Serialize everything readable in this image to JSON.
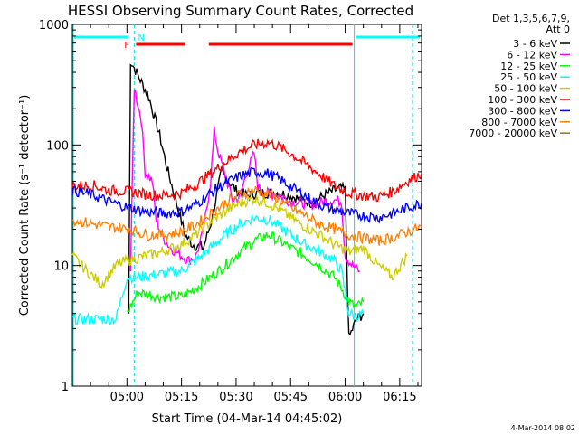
{
  "chart_data": {
    "type": "line",
    "title": "HESSI Observing Summary Count Rates, Corrected",
    "xlabel": "Start Time (04-Mar-14 04:45:02)",
    "ylabel": "Corrected Count Rate (s⁻¹ detector⁻¹)",
    "y_scale": "log",
    "ylim": [
      1,
      1000
    ],
    "xlim_minutes": [
      0,
      96
    ],
    "x_tick_labels": [
      "05:00",
      "05:15",
      "05:30",
      "05:45",
      "06:00",
      "06:15"
    ],
    "y_tick_labels": [
      "1",
      "10",
      "100",
      "1000"
    ],
    "legend_header": [
      "Det 1,3,5,6,7,9,",
      "Att 0"
    ],
    "series": [
      {
        "name": "3 - 6 keV",
        "color": "#000000",
        "points": [
          [
            15.5,
            4
          ],
          [
            16,
            500
          ],
          [
            18,
            380
          ],
          [
            21,
            250
          ],
          [
            24,
            120
          ],
          [
            26,
            65
          ],
          [
            29,
            30
          ],
          [
            31,
            18
          ],
          [
            33,
            15
          ],
          [
            36,
            14
          ],
          [
            38,
            22
          ],
          [
            41,
            60
          ],
          [
            43,
            50
          ],
          [
            45,
            42
          ],
          [
            48,
            38
          ],
          [
            51,
            40
          ],
          [
            54,
            40
          ],
          [
            57,
            40
          ],
          [
            60,
            38
          ],
          [
            63,
            35
          ],
          [
            66,
            33
          ],
          [
            69,
            38
          ],
          [
            72,
            42
          ],
          [
            74,
            44
          ],
          [
            75,
            42
          ],
          [
            76,
            2.5
          ],
          [
            78,
            3.5
          ],
          [
            80,
            4
          ]
        ]
      },
      {
        "name": "6 - 12 keV",
        "color": "#ff00ff",
        "points": [
          [
            16,
            9
          ],
          [
            17,
            300
          ],
          [
            19,
            160
          ],
          [
            20,
            60
          ],
          [
            22,
            50
          ],
          [
            23,
            24
          ],
          [
            25,
            17
          ],
          [
            27,
            14
          ],
          [
            30,
            12
          ],
          [
            32,
            11
          ],
          [
            34,
            12
          ],
          [
            36,
            19
          ],
          [
            38,
            50
          ],
          [
            39,
            130
          ],
          [
            40,
            90
          ],
          [
            42,
            56
          ],
          [
            44,
            35
          ],
          [
            46,
            37
          ],
          [
            48,
            60
          ],
          [
            50,
            85
          ],
          [
            51,
            45
          ],
          [
            53,
            40
          ],
          [
            57,
            38
          ],
          [
            60,
            34
          ],
          [
            63,
            33
          ],
          [
            66,
            32
          ],
          [
            69,
            34
          ],
          [
            72,
            35
          ],
          [
            74,
            34
          ],
          [
            75,
            12
          ],
          [
            77,
            10
          ],
          [
            79,
            9
          ]
        ]
      },
      {
        "name": "12 - 25 keV",
        "color": "#00ff00",
        "points": [
          [
            15,
            4
          ],
          [
            18,
            6
          ],
          [
            24,
            5.5
          ],
          [
            30,
            5.5
          ],
          [
            34,
            6.5
          ],
          [
            38,
            8
          ],
          [
            42,
            10
          ],
          [
            46,
            13
          ],
          [
            50,
            16
          ],
          [
            54,
            18
          ],
          [
            57,
            16
          ],
          [
            60,
            14
          ],
          [
            64,
            12
          ],
          [
            68,
            10
          ],
          [
            72,
            8
          ],
          [
            74,
            6.5
          ],
          [
            76,
            5
          ],
          [
            78,
            4.5
          ],
          [
            80,
            5
          ]
        ]
      },
      {
        "name": "25 - 50 keV",
        "color": "#00ffff",
        "points": [
          [
            0,
            3.6
          ],
          [
            12,
            3.6
          ],
          [
            15,
            8
          ],
          [
            18,
            8
          ],
          [
            24,
            8.5
          ],
          [
            30,
            9
          ],
          [
            34,
            11
          ],
          [
            38,
            14
          ],
          [
            42,
            18
          ],
          [
            46,
            22
          ],
          [
            50,
            25
          ],
          [
            54,
            24
          ],
          [
            57,
            21
          ],
          [
            60,
            18
          ],
          [
            64,
            15
          ],
          [
            68,
            13
          ],
          [
            72,
            11
          ],
          [
            74,
            9
          ],
          [
            76,
            4
          ],
          [
            78,
            3.8
          ],
          [
            80,
            4
          ]
        ]
      },
      {
        "name": "50 - 100 keV",
        "color": "#cccc00",
        "points": [
          [
            0,
            12
          ],
          [
            4,
            9
          ],
          [
            8,
            7
          ],
          [
            12,
            10
          ],
          [
            15,
            11
          ],
          [
            20,
            12
          ],
          [
            25,
            13
          ],
          [
            30,
            15
          ],
          [
            34,
            18
          ],
          [
            38,
            23
          ],
          [
            42,
            28
          ],
          [
            46,
            33
          ],
          [
            50,
            36
          ],
          [
            54,
            33
          ],
          [
            57,
            29
          ],
          [
            60,
            25
          ],
          [
            64,
            21
          ],
          [
            68,
            18
          ],
          [
            72,
            15
          ],
          [
            76,
            13
          ],
          [
            80,
            14
          ],
          [
            84,
            10
          ],
          [
            88,
            8
          ],
          [
            92,
            12
          ]
        ]
      },
      {
        "name": "100 - 300 keV",
        "color": "#ff0000",
        "points": [
          [
            0,
            46
          ],
          [
            6,
            46
          ],
          [
            10,
            42
          ],
          [
            16,
            41
          ],
          [
            20,
            39
          ],
          [
            25,
            38
          ],
          [
            30,
            40
          ],
          [
            34,
            47
          ],
          [
            38,
            58
          ],
          [
            42,
            72
          ],
          [
            46,
            88
          ],
          [
            50,
            100
          ],
          [
            54,
            105
          ],
          [
            57,
            96
          ],
          [
            60,
            85
          ],
          [
            64,
            70
          ],
          [
            68,
            57
          ],
          [
            72,
            46
          ],
          [
            76,
            40
          ],
          [
            80,
            38
          ],
          [
            84,
            37
          ],
          [
            88,
            41
          ],
          [
            92,
            50
          ],
          [
            96,
            58
          ]
        ]
      },
      {
        "name": "300 - 800 keV",
        "color": "#0000ff",
        "points": [
          [
            0,
            42
          ],
          [
            6,
            38
          ],
          [
            10,
            34
          ],
          [
            16,
            30
          ],
          [
            20,
            28
          ],
          [
            25,
            27
          ],
          [
            30,
            28
          ],
          [
            34,
            32
          ],
          [
            38,
            40
          ],
          [
            42,
            48
          ],
          [
            46,
            55
          ],
          [
            50,
            60
          ],
          [
            54,
            58
          ],
          [
            57,
            52
          ],
          [
            60,
            45
          ],
          [
            64,
            38
          ],
          [
            68,
            32
          ],
          [
            72,
            29
          ],
          [
            76,
            27
          ],
          [
            80,
            26
          ],
          [
            84,
            25
          ],
          [
            88,
            27
          ],
          [
            92,
            30
          ],
          [
            96,
            33
          ]
        ]
      },
      {
        "name": "800 - 7000 keV",
        "color": "#ff8000",
        "points": [
          [
            0,
            24
          ],
          [
            6,
            22
          ],
          [
            10,
            21
          ],
          [
            16,
            20
          ],
          [
            20,
            18
          ],
          [
            25,
            18
          ],
          [
            30,
            19
          ],
          [
            34,
            22
          ],
          [
            38,
            27
          ],
          [
            42,
            33
          ],
          [
            46,
            39
          ],
          [
            50,
            42
          ],
          [
            54,
            39
          ],
          [
            57,
            35
          ],
          [
            60,
            30
          ],
          [
            64,
            26
          ],
          [
            68,
            22
          ],
          [
            72,
            20
          ],
          [
            76,
            18
          ],
          [
            80,
            17
          ],
          [
            84,
            16
          ],
          [
            88,
            17
          ],
          [
            92,
            19
          ],
          [
            96,
            21
          ]
        ]
      },
      {
        "name": "7000 - 20000 keV",
        "color": "#a07800",
        "points": []
      }
    ],
    "flag_bars": [
      {
        "label": "",
        "color": "#00ffff",
        "ranges_minutes": [
          [
            0,
            16
          ],
          [
            77.5,
            96
          ]
        ]
      },
      {
        "label": "N",
        "color": "#00ffff",
        "marker_minute": 17.5
      },
      {
        "label": "F",
        "color": "#ff0000",
        "ranges_minutes": [
          [
            17.5,
            31
          ],
          [
            37.5,
            77
          ]
        ]
      }
    ],
    "vertical_markers_minutes": {
      "solid": [
        0,
        77.5
      ],
      "dashed": [
        17,
        93.5
      ]
    }
  },
  "footer_date": "4-Mar-2014 08:02"
}
